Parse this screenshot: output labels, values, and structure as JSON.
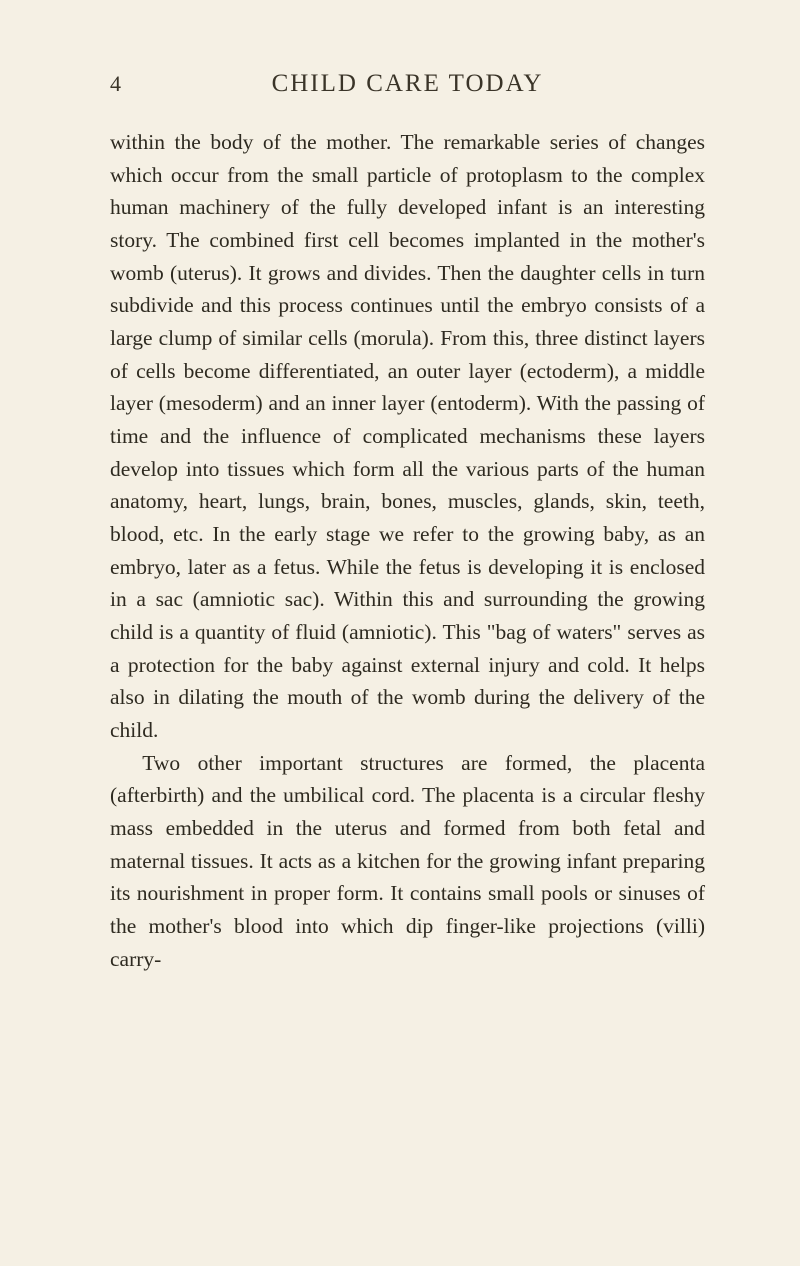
{
  "page": {
    "number": "4",
    "running_title": "CHILD CARE TODAY"
  },
  "paragraphs": [
    {
      "indent": false,
      "text": "within the body of the mother. The remarkable series of changes which occur from the small parti­cle of protoplasm to the complex human machinery of the fully developed infant is an interesting story. The combined first cell becomes implanted in the mother's womb (uterus). It grows and divides. Then the daughter cells in turn subdivide and this process continues until the embryo consists of a large clump of similar cells (morula). From this, three distinct layers of cells become differentiated, an outer layer (ectoderm), a middle layer (meso­derm) and an inner layer (entoderm). With the passing of time and the influence of complicated mechanisms these layers develop into tissues which form all the various parts of the human anatomy, heart, lungs, brain, bones, muscles, glands, skin, teeth, blood, etc. In the early stage we refer to the growing baby, as an embryo, later as a fetus. While the fetus is developing it is enclosed in a sac (amniotic sac). Within this and surrounding the growing child is a quantity of fluid (amniotic). This \"bag of waters\" serves as a protection for the baby against external injury and cold. It helps also in dilating the mouth of the womb during the delivery of the child."
    },
    {
      "indent": true,
      "text": "Two other important structures are formed, the placenta (afterbirth) and the umbilical cord. The placenta is a circular fleshy mass embedded in the uterus and formed from both fetal and maternal tissues. It acts as a kitchen for the growing infant preparing its nourishment in proper form. It con­tains small pools or sinuses of the mother's blood into which dip finger-like projections (villi) carry-"
    }
  ],
  "style": {
    "background_color": "#f5f0e4",
    "text_color": "#2e2a20",
    "header_color": "#3a3428",
    "body_fontsize": 21.5,
    "title_fontsize": 25,
    "pagenum_fontsize": 22,
    "line_height": 1.52,
    "font_family": "Georgia, 'Times New Roman', serif"
  }
}
